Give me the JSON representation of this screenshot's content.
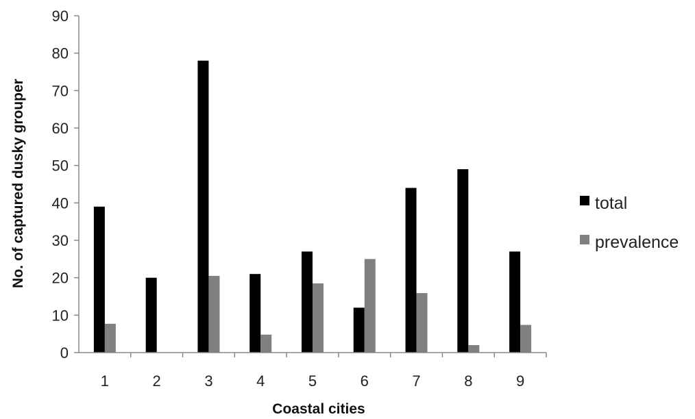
{
  "chart_data": {
    "type": "bar",
    "title": "",
    "xlabel": "Coastal cities",
    "ylabel": "No. of captured dusky grouper",
    "categories": [
      "1",
      "2",
      "3",
      "4",
      "5",
      "6",
      "7",
      "8",
      "9"
    ],
    "y_ticks": [
      "0",
      "10",
      "20",
      "30",
      "40",
      "50",
      "60",
      "70",
      "80",
      "90"
    ],
    "ylim": [
      0,
      90
    ],
    "grid": false,
    "legend_position": "right",
    "series": [
      {
        "name": "total",
        "color": "#000000",
        "values": [
          39,
          20,
          78,
          21,
          27,
          12,
          44,
          49,
          27
        ]
      },
      {
        "name": "prevalence",
        "color": "#808080",
        "values": [
          7.7,
          0,
          20.5,
          4.8,
          18.5,
          25,
          15.9,
          2,
          7.4
        ]
      }
    ]
  }
}
